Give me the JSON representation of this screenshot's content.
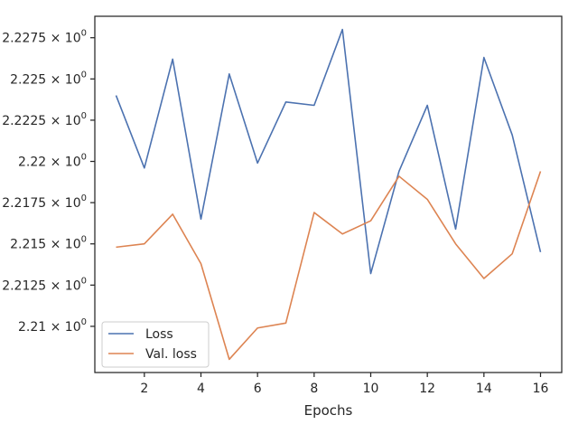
{
  "chart_data": {
    "type": "line",
    "xlabel": "Epochs",
    "ylabel": "",
    "xlim": [
      0.25,
      16.75
    ],
    "ylim": [
      2.2072,
      2.2288
    ],
    "grid": false,
    "legend_position": "bottom-left",
    "x_ticks": [
      2,
      4,
      6,
      8,
      10,
      12,
      14,
      16
    ],
    "x_tick_labels": [
      "2",
      "4",
      "6",
      "8",
      "10",
      "12",
      "14",
      "16"
    ],
    "y_ticks": [
      2.21,
      2.2125,
      2.215,
      2.2175,
      2.22,
      2.2225,
      2.225,
      2.2275
    ],
    "y_tick_labels": [
      {
        "mantissa": "2.21",
        "suffix": " × 10",
        "exp": "0"
      },
      {
        "mantissa": "2.2125",
        "suffix": " × 10",
        "exp": "0"
      },
      {
        "mantissa": "2.215",
        "suffix": " × 10",
        "exp": "0"
      },
      {
        "mantissa": "2.2175",
        "suffix": " × 10",
        "exp": "0"
      },
      {
        "mantissa": "2.22",
        "suffix": " × 10",
        "exp": "0"
      },
      {
        "mantissa": "2.2225",
        "suffix": " × 10",
        "exp": "0"
      },
      {
        "mantissa": "2.225",
        "suffix": " × 10",
        "exp": "0"
      },
      {
        "mantissa": "2.2275",
        "suffix": " × 10",
        "exp": "0"
      }
    ],
    "x": [
      1,
      2,
      3,
      4,
      5,
      6,
      7,
      8,
      9,
      10,
      11,
      12,
      13,
      14,
      15,
      16
    ],
    "series": [
      {
        "name": "Loss",
        "color": "#4c72b0",
        "values": [
          2.224,
          2.2196,
          2.2262,
          2.2165,
          2.2253,
          2.2199,
          2.2236,
          2.2234,
          2.228,
          2.2132,
          2.2194,
          2.2234,
          2.2159,
          2.2263,
          2.2216,
          2.2145
        ]
      },
      {
        "name": "Val. loss",
        "color": "#dd8452",
        "values": [
          2.2148,
          2.215,
          2.2168,
          2.2138,
          2.208,
          2.2099,
          2.2102,
          2.2169,
          2.2156,
          2.2164,
          2.2191,
          2.2177,
          2.215,
          2.2129,
          2.2144,
          2.2194
        ]
      }
    ]
  }
}
